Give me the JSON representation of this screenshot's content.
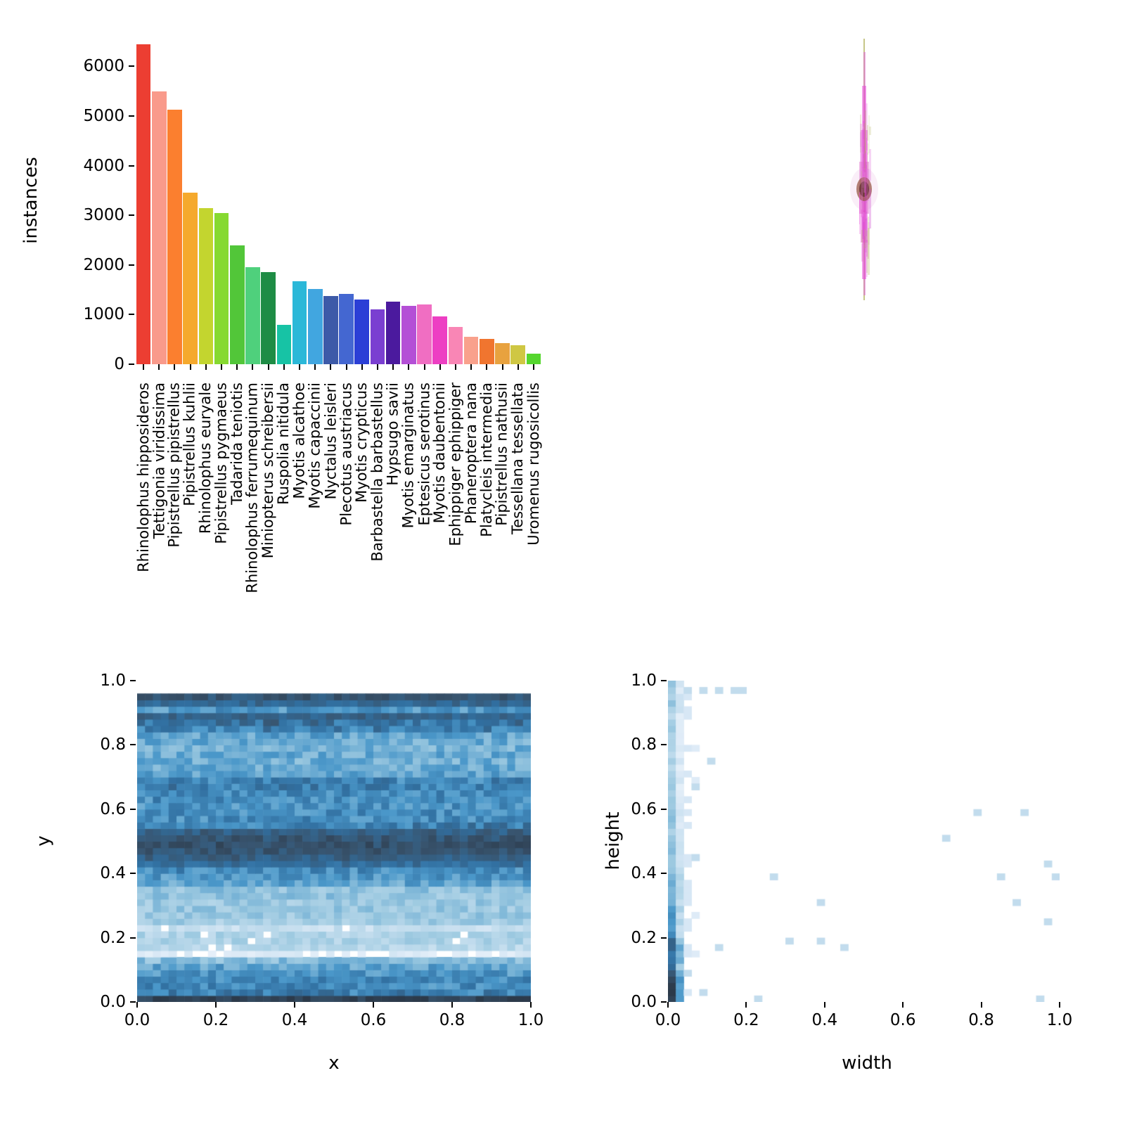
{
  "figure": {
    "background": "#ffffff"
  },
  "chart_data": [
    {
      "id": "instances-per-class",
      "type": "bar",
      "title": "",
      "xlabel": "",
      "ylabel": "instances",
      "ylim": [
        0,
        6600
      ],
      "yticks": [
        "0",
        "1000",
        "2000",
        "3000",
        "4000",
        "5000",
        "6000"
      ],
      "ytick_values": [
        0,
        1000,
        2000,
        3000,
        4000,
        5000,
        6000
      ],
      "grid": false,
      "legend": "none",
      "categories": [
        "Rhinolophus hipposideros",
        "Tettigonia viridissima",
        "Pipistrellus pipistrellus",
        "Pipistrellus kuhlii",
        "Rhinolophus euryale",
        "Pipistrellus pygmaeus",
        "Tadarida teniotis",
        "Rhinolophus ferrumequinum",
        "Miniopterus schreibersii",
        "Ruspolia nitidula",
        "Myotis alcathoe",
        "Myotis capaccinii",
        "Nyctalus leisleri",
        "Plecotus austriacus",
        "Myotis crypticus",
        "Barbastella barbastellus",
        "Hypsugo savii",
        "Myotis emarginatus",
        "Eptesicus serotinus",
        "Myotis daubentonii",
        "Ephippiger ephippiger",
        "Phaneroptera nana",
        "Platycleis intermedia",
        "Pipistrellus nathusii",
        "Tessellana tessellata",
        "Uromenus rugosicollis"
      ],
      "values": [
        6450,
        5500,
        5130,
        3450,
        3150,
        3050,
        2400,
        1950,
        1850,
        800,
        1670,
        1510,
        1380,
        1410,
        1300,
        1100,
        1260,
        1180,
        1200,
        970,
        750,
        550,
        510,
        430,
        380,
        210
      ],
      "colors": [
        "#ec3e32",
        "#f99a8b",
        "#fb7f2f",
        "#f5a92d",
        "#c3d52f",
        "#86d930",
        "#52c639",
        "#4fd07c",
        "#1e8c45",
        "#17c3a5",
        "#2bb8d8",
        "#41a6e0",
        "#3d5aa8",
        "#4467d1",
        "#2b3fd6",
        "#7a3fd1",
        "#4b1a9e",
        "#b44fd6",
        "#f06ec2",
        "#ed3fc3",
        "#f986b5",
        "#f9a18c",
        "#f0752f",
        "#e8a23f",
        "#cfc743",
        "#55d62e"
      ]
    },
    {
      "id": "boxes-overlay",
      "type": "other",
      "description": "overlay of normalized bounding boxes centered at image center",
      "center_x_frac": 0.49,
      "layers": [
        {
          "shape": "rect",
          "w": 2,
          "y0": 0.0,
          "y1": 1.0,
          "color": "#b8b86a",
          "opacity": 0.8
        },
        {
          "shape": "rect",
          "w": 3,
          "y0": 0.05,
          "y1": 0.98,
          "color": "#e060d8",
          "opacity": 0.5
        },
        {
          "shape": "rect",
          "w": 6,
          "y0": 0.18,
          "y1": 0.92,
          "color": "#e63fd6",
          "opacity": 0.5
        },
        {
          "shape": "rect",
          "w": 10,
          "y0": 0.35,
          "y1": 0.78,
          "color": "#e63fd6",
          "opacity": 0.45
        },
        {
          "shape": "rect",
          "w": 14,
          "y0": 0.47,
          "y1": 0.67,
          "color": "#d94fc0",
          "opacity": 0.4
        },
        {
          "shape": "ellipse",
          "w": 40,
          "h": 60,
          "cy": 0.575,
          "color": "#e6a0d8",
          "opacity": 0.18
        },
        {
          "shape": "ellipse",
          "w": 22,
          "h": 34,
          "cy": 0.575,
          "color": "#9a5a4a",
          "opacity": 0.75
        },
        {
          "shape": "ellipse",
          "w": 14,
          "h": 22,
          "cy": 0.575,
          "color": "#6e3a3a",
          "opacity": 0.9
        }
      ],
      "noise_colors": [
        "#e63fd6",
        "#cc44cc",
        "#b8b86a",
        "#e688e0"
      ]
    },
    {
      "id": "xy-position-heatmap",
      "type": "heatmap",
      "xlabel": "x",
      "ylabel": "y",
      "xlim": [
        0,
        1
      ],
      "ylim": [
        0,
        1
      ],
      "xticks": [
        "0.0",
        "0.2",
        "0.4",
        "0.6",
        "0.8",
        "1.0"
      ],
      "yticks": [
        "0.0",
        "0.2",
        "0.4",
        "0.6",
        "0.8",
        "1.0"
      ],
      "tick_values": [
        0,
        0.2,
        0.4,
        0.6,
        0.8,
        1.0
      ],
      "bins": 50,
      "colormap": "blues",
      "row_density_bottom_to_top": [
        0.97,
        0.6,
        0.55,
        0.55,
        0.5,
        0.45,
        0.35,
        0.12,
        0.22,
        0.25,
        0.25,
        0.18,
        0.28,
        0.3,
        0.3,
        0.3,
        0.32,
        0.33,
        0.45,
        0.5,
        0.55,
        0.72,
        0.8,
        0.85,
        0.88,
        0.85,
        0.8,
        0.6,
        0.55,
        0.55,
        0.52,
        0.55,
        0.55,
        0.6,
        0.58,
        0.45,
        0.42,
        0.4,
        0.42,
        0.4,
        0.42,
        0.45,
        0.6,
        0.68,
        0.78,
        0.5,
        0.75,
        0.85,
        0.0,
        0.0
      ]
    },
    {
      "id": "width-height-heatmap",
      "type": "heatmap",
      "xlabel": "width",
      "ylabel": "height",
      "xlim": [
        0,
        1
      ],
      "ylim": [
        0,
        1
      ],
      "xticks": [
        "0.0",
        "0.2",
        "0.4",
        "0.6",
        "0.8",
        "1.0"
      ],
      "yticks": [
        "0.0",
        "0.2",
        "0.4",
        "0.6",
        "0.8",
        "1.0"
      ],
      "tick_values": [
        0,
        0.2,
        0.4,
        0.6,
        0.8,
        1.0
      ],
      "bins": 50,
      "colormap": "blues",
      "left_column_density_bottom_to_top": [
        0.95,
        0.7,
        0.5,
        0.4,
        0.33,
        0.3,
        0.28,
        0.26,
        0.26,
        0.3
      ],
      "scatter_points": [
        [
          0.05,
          0.985
        ],
        [
          0.08,
          0.985
        ],
        [
          0.13,
          0.985
        ],
        [
          0.16,
          0.985
        ],
        [
          0.19,
          0.985
        ],
        [
          0.1,
          0.75
        ],
        [
          0.06,
          0.68
        ],
        [
          0.06,
          0.44
        ],
        [
          0.27,
          0.39
        ],
        [
          0.38,
          0.31
        ],
        [
          0.13,
          0.155
        ],
        [
          0.3,
          0.175
        ],
        [
          0.38,
          0.18
        ],
        [
          0.455,
          0.165
        ],
        [
          0.05,
          0.075
        ],
        [
          0.09,
          0.02
        ],
        [
          0.22,
          0.01
        ],
        [
          0.71,
          0.51
        ],
        [
          0.8,
          0.59
        ],
        [
          0.92,
          0.59
        ],
        [
          0.97,
          0.42
        ],
        [
          0.99,
          0.39
        ],
        [
          0.85,
          0.39
        ],
        [
          0.89,
          0.31
        ],
        [
          0.97,
          0.25
        ],
        [
          0.96,
          0.01
        ]
      ]
    }
  ]
}
